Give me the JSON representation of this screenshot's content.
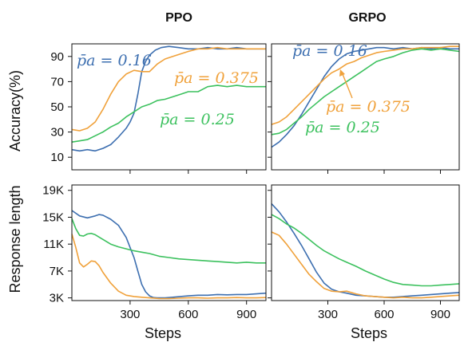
{
  "chart_data": [
    {
      "type": "line",
      "panel": "top-left",
      "title": "PPO",
      "xlabel": "",
      "ylabel": "Accuracy(%)",
      "xlim": [
        0,
        1000
      ],
      "ylim": [
        0,
        100
      ],
      "xticks": [
        300,
        600,
        900
      ],
      "yticks": [
        10,
        30,
        50,
        70,
        90
      ],
      "ytick_labels": [
        "10",
        "30",
        "50",
        "70",
        "90"
      ],
      "grid": false,
      "series": [
        {
          "name": "p̄a = 0.16",
          "color": "#3d6fb0",
          "x": [
            0,
            40,
            80,
            120,
            160,
            200,
            240,
            280,
            300,
            320,
            340,
            360,
            380,
            400,
            430,
            460,
            500,
            550,
            600,
            650,
            700,
            750,
            800,
            850,
            900,
            950,
            1000
          ],
          "y": [
            16,
            15,
            16,
            15,
            17,
            20,
            26,
            33,
            38,
            45,
            60,
            78,
            86,
            91,
            95,
            97,
            98,
            97,
            96,
            96,
            97,
            96,
            96,
            97,
            96,
            96,
            96
          ]
        },
        {
          "name": "p̄a = 0.375",
          "color": "#f0a13a",
          "x": [
            0,
            40,
            80,
            120,
            160,
            200,
            240,
            280,
            320,
            360,
            400,
            440,
            480,
            520,
            560,
            600,
            650,
            700,
            750,
            800,
            850,
            900,
            950,
            1000
          ],
          "y": [
            32,
            31,
            33,
            38,
            48,
            60,
            70,
            76,
            79,
            78,
            78,
            84,
            88,
            90,
            92,
            94,
            96,
            96,
            97,
            96,
            96,
            96,
            96,
            96
          ]
        },
        {
          "name": "p̄a = 0.25",
          "color": "#3cc15e",
          "x": [
            0,
            40,
            80,
            120,
            160,
            200,
            240,
            280,
            320,
            360,
            400,
            440,
            480,
            520,
            560,
            600,
            650,
            700,
            750,
            800,
            850,
            900,
            950,
            1000
          ],
          "y": [
            22,
            23,
            24,
            27,
            30,
            34,
            37,
            42,
            46,
            50,
            52,
            55,
            56,
            58,
            60,
            62,
            62,
            66,
            67,
            66,
            67,
            66,
            66,
            66
          ]
        }
      ],
      "annotations": [
        {
          "text": "p̄a = 0.16",
          "color": "#3d6fb0"
        },
        {
          "text": "p̄a = 0.375",
          "color": "#f0a13a"
        },
        {
          "text": "p̄a = 0.25",
          "color": "#3cc15e"
        }
      ]
    },
    {
      "type": "line",
      "panel": "top-right",
      "title": "GRPO",
      "xlabel": "",
      "ylabel": "",
      "xlim": [
        0,
        1000
      ],
      "ylim": [
        0,
        100
      ],
      "xticks": [
        300,
        600,
        900
      ],
      "yticks": [
        10,
        30,
        50,
        70,
        90
      ],
      "grid": false,
      "series": [
        {
          "name": "p̄a = 0.16",
          "color": "#3d6fb0",
          "x": [
            0,
            40,
            80,
            120,
            160,
            200,
            240,
            280,
            320,
            360,
            400,
            440,
            480,
            520,
            560,
            600,
            650,
            700,
            750,
            800,
            850,
            900,
            950,
            1000
          ],
          "y": [
            18,
            22,
            28,
            35,
            44,
            54,
            64,
            74,
            82,
            88,
            92,
            94,
            95,
            96,
            97,
            97,
            96,
            97,
            96,
            97,
            96,
            97,
            96,
            96
          ]
        },
        {
          "name": "p̄a = 0.375",
          "color": "#f0a13a",
          "x": [
            0,
            40,
            80,
            120,
            160,
            200,
            240,
            280,
            320,
            360,
            400,
            440,
            480,
            520,
            560,
            600,
            650,
            700,
            750,
            800,
            850,
            900,
            950,
            1000
          ],
          "y": [
            36,
            38,
            42,
            48,
            54,
            60,
            66,
            72,
            77,
            80,
            84,
            86,
            89,
            91,
            93,
            94,
            95,
            96,
            96,
            97,
            97,
            97,
            98,
            98
          ]
        },
        {
          "name": "p̄a = 0.25",
          "color": "#3cc15e",
          "x": [
            0,
            40,
            80,
            120,
            160,
            200,
            240,
            280,
            320,
            360,
            400,
            440,
            480,
            520,
            560,
            600,
            650,
            700,
            750,
            800,
            850,
            900,
            950,
            1000
          ],
          "y": [
            28,
            29,
            32,
            37,
            42,
            48,
            53,
            58,
            62,
            66,
            70,
            74,
            78,
            82,
            86,
            88,
            90,
            93,
            95,
            96,
            95,
            96,
            95,
            94
          ]
        }
      ],
      "annotations": [
        {
          "text": "p̄a = 0.16",
          "color": "#3d6fb0"
        },
        {
          "text": "p̄a = 0.375",
          "color": "#f0a13a"
        },
        {
          "text": "p̄a = 0.25",
          "color": "#3cc15e"
        }
      ]
    },
    {
      "type": "line",
      "panel": "bottom-left",
      "title": "",
      "xlabel": "Steps",
      "ylabel": "Response length",
      "xlim": [
        0,
        1000
      ],
      "ylim": [
        2600,
        19800
      ],
      "xticks": [
        300,
        600,
        900
      ],
      "yticks": [
        3000,
        7000,
        11000,
        15000,
        19000
      ],
      "ytick_labels": [
        "3K",
        "7K",
        "11K",
        "15K",
        "19K"
      ],
      "grid": false,
      "series": [
        {
          "name": "p̄a = 0.16",
          "color": "#3d6fb0",
          "x": [
            0,
            40,
            80,
            120,
            140,
            160,
            200,
            240,
            280,
            320,
            340,
            360,
            380,
            400,
            420,
            440,
            480,
            520,
            560,
            600,
            650,
            700,
            750,
            800,
            850,
            900,
            950,
            1000
          ],
          "y": [
            16000,
            15200,
            14900,
            15200,
            15400,
            15300,
            14700,
            13800,
            12000,
            9000,
            7000,
            5000,
            3900,
            3300,
            3050,
            3000,
            3000,
            3100,
            3200,
            3300,
            3400,
            3400,
            3500,
            3450,
            3500,
            3500,
            3600,
            3700
          ]
        },
        {
          "name": "p̄a = 0.375",
          "color": "#f0a13a",
          "x": [
            0,
            20,
            40,
            60,
            80,
            100,
            120,
            140,
            160,
            200,
            240,
            280,
            320,
            360,
            400,
            450,
            500,
            550,
            600,
            650,
            700,
            750,
            800,
            850,
            900,
            950,
            1000
          ],
          "y": [
            12500,
            10500,
            8200,
            7600,
            8000,
            8500,
            8400,
            7800,
            6800,
            5200,
            4000,
            3400,
            3200,
            3100,
            3000,
            2900,
            2900,
            2950,
            3000,
            3000,
            2950,
            3000,
            3000,
            3050,
            3000,
            3000,
            3050
          ]
        },
        {
          "name": "p̄a = 0.25",
          "color": "#3cc15e",
          "x": [
            0,
            20,
            40,
            60,
            80,
            100,
            120,
            160,
            200,
            240,
            280,
            320,
            360,
            400,
            450,
            500,
            550,
            600,
            650,
            700,
            750,
            800,
            850,
            900,
            950,
            1000
          ],
          "y": [
            14800,
            13300,
            12300,
            12200,
            12500,
            12600,
            12400,
            11700,
            11000,
            10600,
            10300,
            10000,
            9800,
            9600,
            9200,
            9000,
            8800,
            8700,
            8600,
            8500,
            8400,
            8300,
            8200,
            8300,
            8200,
            8200
          ]
        }
      ]
    },
    {
      "type": "line",
      "panel": "bottom-right",
      "title": "",
      "xlabel": "Steps",
      "ylabel": "",
      "xlim": [
        0,
        1000
      ],
      "ylim": [
        2600,
        19800
      ],
      "xticks": [
        300,
        600,
        900
      ],
      "yticks": [
        3000,
        7000,
        11000,
        15000,
        19000
      ],
      "grid": false,
      "series": [
        {
          "name": "p̄a = 0.16",
          "color": "#3d6fb0",
          "x": [
            0,
            40,
            80,
            120,
            160,
            200,
            240,
            280,
            320,
            360,
            400,
            450,
            500,
            550,
            600,
            650,
            700,
            750,
            800,
            850,
            900,
            950,
            1000
          ],
          "y": [
            17000,
            15800,
            14300,
            12600,
            10800,
            8800,
            6800,
            5200,
            4300,
            3900,
            3700,
            3400,
            3300,
            3200,
            3100,
            3100,
            3200,
            3300,
            3400,
            3500,
            3600,
            3700,
            3800
          ]
        },
        {
          "name": "p̄a = 0.375",
          "color": "#f0a13a",
          "x": [
            0,
            40,
            80,
            120,
            160,
            200,
            240,
            280,
            320,
            360,
            400,
            450,
            500,
            550,
            600,
            650,
            700,
            750,
            800,
            850,
            900,
            950,
            1000
          ],
          "y": [
            12800,
            12300,
            11000,
            9500,
            8000,
            6500,
            5400,
            4400,
            4000,
            3900,
            4000,
            3600,
            3300,
            3200,
            3100,
            3000,
            3100,
            3000,
            3000,
            3100,
            3200,
            3300,
            3400
          ]
        },
        {
          "name": "p̄a = 0.25",
          "color": "#3cc15e",
          "x": [
            0,
            40,
            80,
            120,
            160,
            200,
            240,
            280,
            320,
            360,
            400,
            450,
            500,
            550,
            600,
            650,
            700,
            750,
            800,
            850,
            900,
            950,
            1000
          ],
          "y": [
            15400,
            14800,
            14000,
            13400,
            12600,
            11700,
            10800,
            10000,
            9400,
            8800,
            8300,
            7700,
            7000,
            6400,
            5800,
            5300,
            5000,
            4900,
            4800,
            4800,
            4900,
            5000,
            5100
          ]
        }
      ]
    }
  ]
}
